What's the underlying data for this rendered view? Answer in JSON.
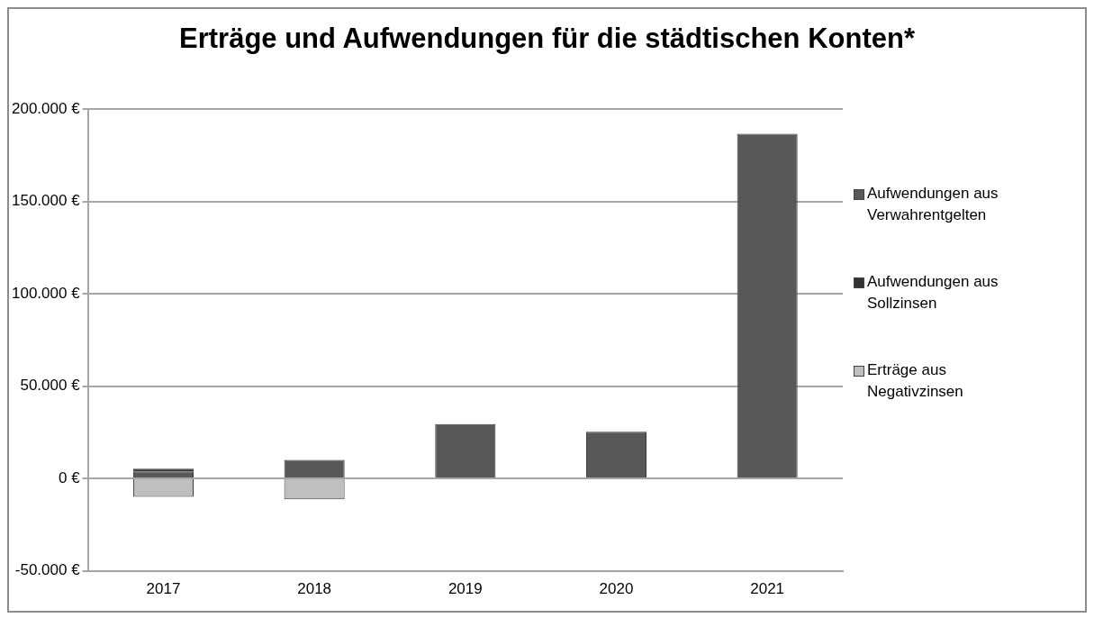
{
  "chart_data": {
    "type": "bar",
    "title": "Erträge und Aufwendungen für die städtischen Konten*",
    "categories": [
      "2017",
      "2018",
      "2019",
      "2020",
      "2021"
    ],
    "stacked": true,
    "grid": "y",
    "legend": "right",
    "ylim": [
      -50000,
      200000
    ],
    "yticks": [
      {
        "value": -50000,
        "label": "-50.000 €"
      },
      {
        "value": 0,
        "label": "0 €"
      },
      {
        "value": 50000,
        "label": "50.000 €"
      },
      {
        "value": 100000,
        "label": "100.000 €"
      },
      {
        "value": 150000,
        "label": "150.000 €"
      },
      {
        "value": 200000,
        "label": "200.000 €"
      }
    ],
    "series": [
      {
        "name": "Aufwendungen aus Verwahrentgelten",
        "color": "#585858",
        "values": [
          3800,
          10000,
          29500,
          25300,
          186700
        ]
      },
      {
        "name": "Aufwendungen aus Sollzinsen",
        "color": "#333333",
        "values": [
          1500,
          null,
          null,
          null,
          null
        ]
      },
      {
        "name": "Erträge aus Negativzinsen",
        "color": "#bfbfbf",
        "values": [
          -10000,
          -11300,
          null,
          null,
          null
        ]
      }
    ]
  }
}
